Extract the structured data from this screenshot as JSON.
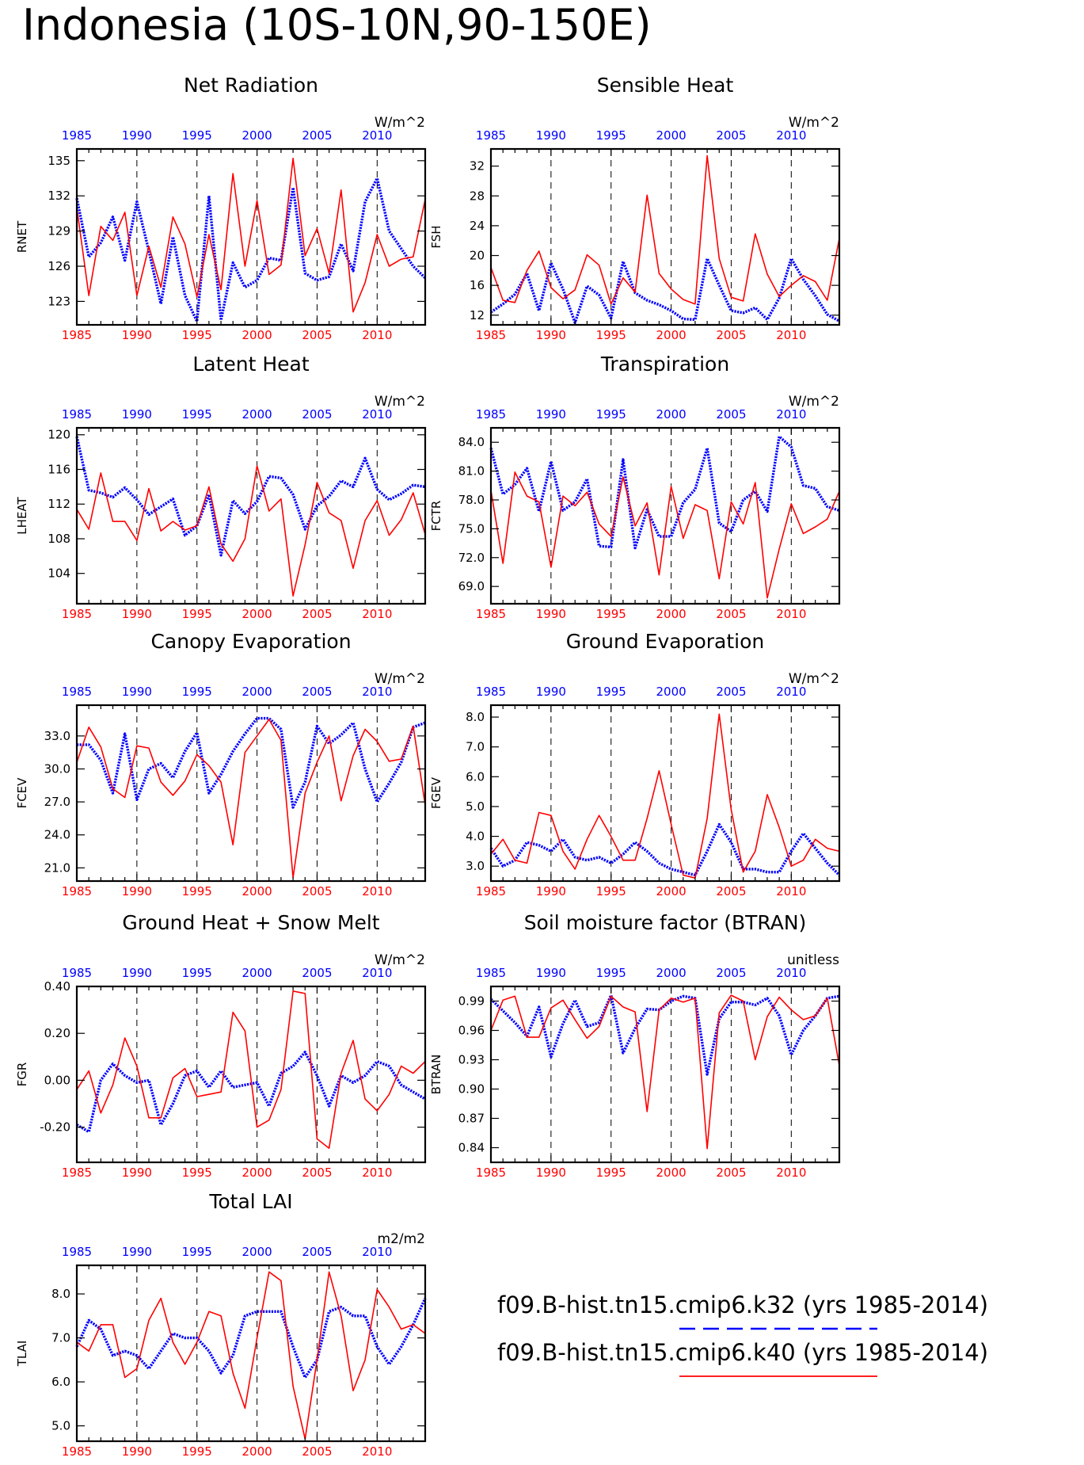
{
  "title": "Indonesia (10S-10N,90-150E)",
  "colors": {
    "blue": "#0000ff",
    "red": "#ff0000",
    "axis": "#000000"
  },
  "legend": [
    {
      "text": "f09.B-hist.tn15.cmip6.k32 (yrs 1985-2014)",
      "color": "#0000ff",
      "style": "dashed"
    },
    {
      "text": "f09.B-hist.tn15.cmip6.k40 (yrs 1985-2014)",
      "color": "#ff0000",
      "style": "solid"
    }
  ],
  "chart_data": [
    {
      "type": "line",
      "title": "Net Radiation",
      "units": "W/m^2",
      "ylabel": "RNET",
      "xlim": [
        1985,
        2014
      ],
      "ylim": [
        121,
        136
      ],
      "xticks": [
        "1985",
        "1990",
        "1995",
        "2000",
        "2005",
        "2010"
      ],
      "yticks": [
        "123",
        "126",
        "129",
        "132",
        "135"
      ],
      "grid_x": [
        1990,
        1995,
        2000,
        2005,
        2010
      ],
      "series": [
        {
          "color": "#0000ff",
          "style": "dashed",
          "values": [
            131.8,
            126.8,
            128.0,
            130.2,
            126.5,
            131.5,
            127.3,
            122.8,
            128.5,
            123.5,
            121.3,
            132.0,
            121.4,
            126.3,
            124.2,
            124.8,
            126.7,
            126.5,
            132.7,
            125.4,
            124.8,
            125.1,
            127.9,
            125.6,
            131.5,
            133.5,
            129.0,
            127.5,
            126.0,
            125.0
          ]
        },
        {
          "color": "#ff0000",
          "style": "solid",
          "values": [
            131.0,
            123.5,
            129.4,
            128.2,
            130.6,
            123.5,
            127.7,
            124.2,
            130.2,
            127.9,
            123.4,
            128.7,
            124.0,
            133.9,
            126.0,
            131.6,
            125.3,
            126.1,
            135.2,
            126.9,
            129.2,
            125.4,
            132.5,
            122.1,
            124.6,
            128.7,
            126.0,
            126.6,
            126.8,
            131.7
          ]
        }
      ]
    },
    {
      "type": "line",
      "title": "Sensible Heat",
      "units": "W/m^2",
      "ylabel": "FSH",
      "xlim": [
        1985,
        2014
      ],
      "ylim": [
        10.7,
        34.3
      ],
      "xticks": [
        "1985",
        "1990",
        "1995",
        "2000",
        "2005",
        "2010"
      ],
      "yticks": [
        "12",
        "16",
        "20",
        "24",
        "28",
        "32"
      ],
      "grid_x": [
        1990,
        1995,
        2000,
        2005,
        2010
      ],
      "series": [
        {
          "color": "#0000ff",
          "style": "dashed",
          "values": [
            12.4,
            13.5,
            14.8,
            17.6,
            12.6,
            19.0,
            15.5,
            11.0,
            15.9,
            14.7,
            11.6,
            19.2,
            15.0,
            14.0,
            13.4,
            12.6,
            11.5,
            11.4,
            19.6,
            16.0,
            12.6,
            12.3,
            13.0,
            11.4,
            14.3,
            19.6,
            16.8,
            14.6,
            12.1,
            11.2
          ]
        },
        {
          "color": "#ff0000",
          "style": "solid",
          "values": [
            18.4,
            14.0,
            13.7,
            18.0,
            20.6,
            15.7,
            14.2,
            15.4,
            20.1,
            18.7,
            13.5,
            17.0,
            15.1,
            28.1,
            17.6,
            15.5,
            14.1,
            13.5,
            33.4,
            19.6,
            14.4,
            13.9,
            22.9,
            17.5,
            14.5,
            16.0,
            17.3,
            16.5,
            14.0,
            22.3
          ]
        }
      ]
    },
    {
      "type": "line",
      "title": "Latent Heat",
      "units": "W/m^2",
      "ylabel": "LHEAT",
      "xlim": [
        1985,
        2014
      ],
      "ylim": [
        100.5,
        120.8
      ],
      "xticks": [
        "1985",
        "1990",
        "1995",
        "2000",
        "2005",
        "2010"
      ],
      "yticks": [
        "104",
        "108",
        "112",
        "116",
        "120"
      ],
      "grid_x": [
        1990,
        1995,
        2000,
        2005,
        2010
      ],
      "series": [
        {
          "color": "#0000ff",
          "style": "dashed",
          "values": [
            119.8,
            113.6,
            113.3,
            112.8,
            113.9,
            112.5,
            110.8,
            111.7,
            112.6,
            108.4,
            109.5,
            113.1,
            106.1,
            112.4,
            110.9,
            112.3,
            115.2,
            115.0,
            113.1,
            109.1,
            111.8,
            112.9,
            114.7,
            114.0,
            117.3,
            113.7,
            112.5,
            113.2,
            114.2,
            114.0
          ]
        },
        {
          "color": "#ff0000",
          "style": "solid",
          "values": [
            111.4,
            109.1,
            115.6,
            110.0,
            110.0,
            107.8,
            113.8,
            108.9,
            110.0,
            109.0,
            109.5,
            114.0,
            107.4,
            105.4,
            108.0,
            116.4,
            111.2,
            112.6,
            101.4,
            107.3,
            114.5,
            111.0,
            110.1,
            104.6,
            110.1,
            112.4,
            108.4,
            110.2,
            113.3,
            108.5
          ]
        }
      ]
    },
    {
      "type": "line",
      "title": "Transpiration",
      "units": "W/m^2",
      "ylabel": "FCTR",
      "xlim": [
        1985,
        2014
      ],
      "ylim": [
        67.2,
        85.5
      ],
      "xticks": [
        "1985",
        "1990",
        "1995",
        "2000",
        "2005",
        "2010"
      ],
      "yticks": [
        "69.0",
        "72.0",
        "75.0",
        "78.0",
        "81.0",
        "84.0"
      ],
      "grid_x": [
        1990,
        1995,
        2000,
        2005,
        2010
      ],
      "series": [
        {
          "color": "#0000ff",
          "style": "dashed",
          "values": [
            83.4,
            78.6,
            79.6,
            81.3,
            76.8,
            82.0,
            76.9,
            77.8,
            80.2,
            73.2,
            73.1,
            82.2,
            73.0,
            77.0,
            74.2,
            74.2,
            77.7,
            79.1,
            83.4,
            75.6,
            74.7,
            78.0,
            78.9,
            76.8,
            84.6,
            83.5,
            79.5,
            79.2,
            77.3,
            76.9
          ]
        },
        {
          "color": "#ff0000",
          "style": "solid",
          "values": [
            79.0,
            71.4,
            80.9,
            78.4,
            77.8,
            71.0,
            78.4,
            77.4,
            78.8,
            75.5,
            74.2,
            80.4,
            75.3,
            77.7,
            70.2,
            79.4,
            74.0,
            77.5,
            76.9,
            69.8,
            77.8,
            75.5,
            79.8,
            67.8,
            72.9,
            77.6,
            74.5,
            75.2,
            76.0,
            78.9
          ]
        }
      ]
    },
    {
      "type": "line",
      "title": "Canopy Evaporation",
      "units": "W/m^2",
      "ylabel": "FCEV",
      "xlim": [
        1985,
        2014
      ],
      "ylim": [
        19.8,
        35.8
      ],
      "xticks": [
        "1985",
        "1990",
        "1995",
        "2000",
        "2005",
        "2010"
      ],
      "yticks": [
        "21.0",
        "24.0",
        "27.0",
        "30.0",
        "33.0"
      ],
      "grid_x": [
        1990,
        1995,
        2000,
        2005,
        2010
      ],
      "series": [
        {
          "color": "#0000ff",
          "style": "dashed",
          "values": [
            32.2,
            32.2,
            30.8,
            27.8,
            33.2,
            27.2,
            30.0,
            30.5,
            29.2,
            31.6,
            33.3,
            27.8,
            29.5,
            31.6,
            33.2,
            34.6,
            34.6,
            33.6,
            26.5,
            28.8,
            33.9,
            32.3,
            33.1,
            34.2,
            30.0,
            27.0,
            28.7,
            30.6,
            33.8,
            34.2
          ]
        },
        {
          "color": "#ff0000",
          "style": "solid",
          "values": [
            30.6,
            33.8,
            32.0,
            28.2,
            27.4,
            32.1,
            31.9,
            28.8,
            27.6,
            28.9,
            31.3,
            30.3,
            28.8,
            23.1,
            31.5,
            33.0,
            34.5,
            32.6,
            20.1,
            27.8,
            30.6,
            33.0,
            27.1,
            31.2,
            33.6,
            32.5,
            30.7,
            30.9,
            33.9,
            26.7
          ]
        }
      ]
    },
    {
      "type": "line",
      "title": "Ground Evaporation",
      "units": "W/m^2",
      "ylabel": "FGEV",
      "xlim": [
        1985,
        2014
      ],
      "ylim": [
        2.5,
        8.4
      ],
      "xticks": [
        "1985",
        "1990",
        "1995",
        "2000",
        "2005",
        "2010"
      ],
      "yticks": [
        "3.0",
        "4.0",
        "5.0",
        "6.0",
        "7.0",
        "8.0"
      ],
      "grid_x": [
        1990,
        1995,
        2000,
        2005,
        2010
      ],
      "series": [
        {
          "color": "#0000ff",
          "style": "dashed",
          "values": [
            3.6,
            3.0,
            3.2,
            3.8,
            3.7,
            3.5,
            3.9,
            3.3,
            3.2,
            3.3,
            3.1,
            3.4,
            3.8,
            3.5,
            3.1,
            2.9,
            2.8,
            2.7,
            3.5,
            4.4,
            3.8,
            2.9,
            2.9,
            2.8,
            2.8,
            3.5,
            4.1,
            3.6,
            3.1,
            2.7
          ]
        },
        {
          "color": "#ff0000",
          "style": "solid",
          "values": [
            3.4,
            3.9,
            3.2,
            3.1,
            4.8,
            4.7,
            3.5,
            2.9,
            3.9,
            4.7,
            4.0,
            3.2,
            3.2,
            4.6,
            6.2,
            4.4,
            2.7,
            2.6,
            4.6,
            8.1,
            4.9,
            2.8,
            3.5,
            5.4,
            4.3,
            3.0,
            3.2,
            3.9,
            3.6,
            3.5
          ]
        }
      ]
    },
    {
      "type": "line",
      "title": "Ground Heat + Snow Melt",
      "units": "W/m^2",
      "ylabel": "FGR",
      "xlim": [
        1985,
        2014
      ],
      "ylim": [
        -0.35,
        0.4
      ],
      "xticks": [
        "1985",
        "1990",
        "1995",
        "2000",
        "2005",
        "2010"
      ],
      "yticks": [
        "-0.20",
        "0.00",
        "0.20",
        "0.40"
      ],
      "grid_x": [
        1990,
        1995,
        2000,
        2005,
        2010
      ],
      "series": [
        {
          "color": "#0000ff",
          "style": "dashed",
          "values": [
            -0.19,
            -0.22,
            0.0,
            0.07,
            0.02,
            -0.01,
            0.0,
            -0.19,
            -0.1,
            0.02,
            0.04,
            -0.03,
            0.04,
            -0.03,
            -0.02,
            -0.01,
            -0.11,
            0.03,
            0.06,
            0.12,
            0.02,
            -0.11,
            0.02,
            -0.01,
            0.02,
            0.08,
            0.06,
            -0.02,
            -0.05,
            -0.08
          ]
        },
        {
          "color": "#ff0000",
          "style": "solid",
          "values": [
            -0.04,
            0.04,
            -0.14,
            -0.02,
            0.18,
            0.06,
            -0.16,
            -0.16,
            0.01,
            0.05,
            -0.07,
            -0.06,
            -0.05,
            0.29,
            0.21,
            -0.2,
            -0.17,
            -0.04,
            0.38,
            0.37,
            -0.25,
            -0.29,
            0.03,
            0.17,
            -0.08,
            -0.13,
            -0.06,
            0.06,
            0.03,
            0.08
          ]
        }
      ]
    },
    {
      "type": "line",
      "title": "Soil moisture factor (BTRAN)",
      "units": "unitless",
      "ylabel": "BTRAN",
      "xlim": [
        1985,
        2014
      ],
      "ylim": [
        0.825,
        1.005
      ],
      "xticks": [
        "1985",
        "1990",
        "1995",
        "2000",
        "2005",
        "2010"
      ],
      "yticks": [
        "0.84",
        "0.87",
        "0.90",
        "0.93",
        "0.96",
        "0.99"
      ],
      "grid_x": [
        1990,
        1995,
        2000,
        2005,
        2010
      ],
      "series": [
        {
          "color": "#0000ff",
          "style": "dashed",
          "values": [
            0.992,
            0.98,
            0.968,
            0.954,
            0.984,
            0.933,
            0.967,
            0.991,
            0.964,
            0.968,
            0.996,
            0.937,
            0.962,
            0.982,
            0.981,
            0.99,
            0.995,
            0.993,
            0.915,
            0.972,
            0.989,
            0.989,
            0.986,
            0.993,
            0.975,
            0.935,
            0.96,
            0.975,
            0.993,
            0.995
          ]
        },
        {
          "color": "#ff0000",
          "style": "solid",
          "values": [
            0.96,
            0.991,
            0.995,
            0.953,
            0.953,
            0.983,
            0.991,
            0.971,
            0.952,
            0.964,
            0.995,
            0.984,
            0.979,
            0.877,
            0.981,
            0.993,
            0.989,
            0.993,
            0.839,
            0.978,
            0.996,
            0.99,
            0.93,
            0.974,
            0.994,
            0.981,
            0.971,
            0.975,
            0.993,
            0.924
          ]
        }
      ]
    },
    {
      "type": "line",
      "title": "Total LAI",
      "units": "m2/m2",
      "ylabel": "TLAI",
      "xlim": [
        1985,
        2014
      ],
      "ylim": [
        4.65,
        8.65
      ],
      "xticks": [
        "1985",
        "1990",
        "1995",
        "2000",
        "2005",
        "2010"
      ],
      "yticks": [
        "5.0",
        "6.0",
        "7.0",
        "8.0"
      ],
      "grid_x": [
        1990,
        1995,
        2000,
        2005,
        2010
      ],
      "series": [
        {
          "color": "#0000ff",
          "style": "dashed",
          "values": [
            6.8,
            7.4,
            7.2,
            6.6,
            6.7,
            6.6,
            6.3,
            6.7,
            7.1,
            7.0,
            7.0,
            6.7,
            6.2,
            6.6,
            7.5,
            7.6,
            7.6,
            7.6,
            6.8,
            6.1,
            6.5,
            7.6,
            7.7,
            7.5,
            7.5,
            6.8,
            6.4,
            6.8,
            7.3,
            7.9
          ]
        },
        {
          "color": "#ff0000",
          "style": "solid",
          "values": [
            6.9,
            6.7,
            7.3,
            7.3,
            6.1,
            6.3,
            7.4,
            7.9,
            6.9,
            6.4,
            6.9,
            7.6,
            7.5,
            6.2,
            5.4,
            7.0,
            8.5,
            8.3,
            5.9,
            4.7,
            6.5,
            8.5,
            7.5,
            5.8,
            6.5,
            8.1,
            7.7,
            7.2,
            7.3,
            7.1
          ]
        }
      ]
    }
  ]
}
